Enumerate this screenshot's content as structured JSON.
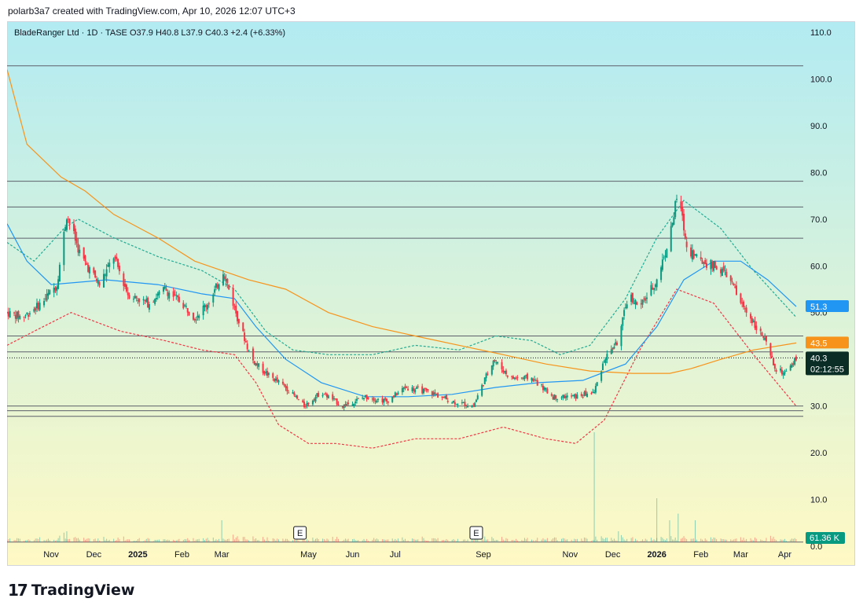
{
  "header": {
    "text": "polarb3a7 created with TradingView.com, Apr 10, 2026 12:07 UTC+3"
  },
  "legend": {
    "text": "BladeRanger Ltd · 1D · TASE  O37.9  H40.8  L37.9  C40.3  +2.4 (+6.33%)"
  },
  "footer": {
    "brand": "TradingView",
    "logo_icon": "tradingview-logo-icon"
  },
  "colors": {
    "up": "#089981",
    "down": "#f23645",
    "sma_orange": "#f7931a",
    "sma_blue": "#2196f3",
    "band_green": "#22ab94",
    "band_red": "#f23645",
    "bg_top": "#b2ebf2",
    "bg_bottom": "#fff9c4",
    "hline": "#5d606b"
  },
  "chart_data": {
    "type": "candlestick",
    "symbol": "BladeRanger Ltd",
    "interval": "1D",
    "exchange": "TASE",
    "ohlc_last": {
      "open": 37.9,
      "high": 40.8,
      "low": 37.9,
      "close": 40.3,
      "change": "+2.4 (+6.33%)"
    },
    "y_axis": {
      "ylim": [
        -2,
        112
      ],
      "ticks": [
        0.0,
        10.0,
        20.0,
        30.0,
        40.0,
        50.0,
        60.0,
        70.0,
        80.0,
        90.0,
        100.0,
        110.0
      ],
      "tick_labels": [
        "0.0",
        "10.0",
        "20.0",
        "30.0",
        "40.0",
        "50.0",
        "60.0",
        "70.0",
        "80.0",
        "90.0",
        "100.0",
        "110.0"
      ]
    },
    "x_axis": {
      "ticks": [
        {
          "label": "Nov",
          "date": "2024-11-01",
          "bold": false
        },
        {
          "label": "Dec",
          "date": "2024-12-01",
          "bold": false
        },
        {
          "label": "2025",
          "date": "2025-01-01",
          "bold": true
        },
        {
          "label": "Feb",
          "date": "2025-02-01",
          "bold": false
        },
        {
          "label": "Mar",
          "date": "2025-03-01",
          "bold": false
        },
        {
          "label": "May",
          "date": "2025-05-01",
          "bold": false
        },
        {
          "label": "Jun",
          "date": "2025-06-01",
          "bold": false
        },
        {
          "label": "Jul",
          "date": "2025-07-01",
          "bold": false
        },
        {
          "label": "Sep",
          "date": "2025-09-01",
          "bold": false
        },
        {
          "label": "Nov",
          "date": "2025-11-01",
          "bold": false
        },
        {
          "label": "Dec",
          "date": "2025-12-01",
          "bold": false
        },
        {
          "label": "2026",
          "date": "2026-01-01",
          "bold": true
        },
        {
          "label": "Feb",
          "date": "2026-02-01",
          "bold": false
        },
        {
          "label": "Mar",
          "date": "2026-03-01",
          "bold": false
        },
        {
          "label": "Apr",
          "date": "2026-04-01",
          "bold": false
        }
      ],
      "range": [
        "2024-10-01",
        "2026-04-14"
      ]
    },
    "horizontal_lines": [
      102.8,
      78.1,
      72.6,
      65.9,
      45.0,
      41.6,
      30.0,
      29.0,
      27.8,
      0.9
    ],
    "price_path": [
      [
        "2024-10-01",
        50
      ],
      [
        "2024-10-12",
        49
      ],
      [
        "2024-10-25",
        52
      ],
      [
        "2024-11-05",
        56
      ],
      [
        "2024-11-12",
        71
      ],
      [
        "2024-11-22",
        62
      ],
      [
        "2024-12-05",
        56
      ],
      [
        "2024-12-15",
        62
      ],
      [
        "2024-12-25",
        54
      ],
      [
        "2025-01-08",
        52
      ],
      [
        "2025-01-20",
        55
      ],
      [
        "2025-02-01",
        52
      ],
      [
        "2025-02-10",
        49
      ],
      [
        "2025-02-22",
        53
      ],
      [
        "2025-03-02",
        59
      ],
      [
        "2025-03-12",
        49
      ],
      [
        "2025-03-22",
        40
      ],
      [
        "2025-04-01",
        37
      ],
      [
        "2025-04-15",
        34
      ],
      [
        "2025-04-28",
        30
      ],
      [
        "2025-05-10",
        33
      ],
      [
        "2025-05-25",
        30
      ],
      [
        "2025-06-10",
        32
      ],
      [
        "2025-06-25",
        31
      ],
      [
        "2025-07-08",
        34
      ],
      [
        "2025-07-25",
        33
      ],
      [
        "2025-08-10",
        31
      ],
      [
        "2025-08-25",
        30
      ],
      [
        "2025-09-08",
        40
      ],
      [
        "2025-09-20",
        36
      ],
      [
        "2025-10-05",
        36
      ],
      [
        "2025-10-20",
        32
      ],
      [
        "2025-11-05",
        32
      ],
      [
        "2025-11-18",
        33
      ],
      [
        "2025-11-25",
        40
      ],
      [
        "2025-12-05",
        44
      ],
      [
        "2025-12-12",
        54
      ],
      [
        "2025-12-20",
        51
      ],
      [
        "2026-01-01",
        57
      ],
      [
        "2026-01-10",
        66
      ],
      [
        "2026-01-16",
        76
      ],
      [
        "2026-01-22",
        64
      ],
      [
        "2026-02-01",
        61
      ],
      [
        "2026-02-10",
        60
      ],
      [
        "2026-02-20",
        58
      ],
      [
        "2026-03-01",
        52
      ],
      [
        "2026-03-10",
        48
      ],
      [
        "2026-03-18",
        44
      ],
      [
        "2026-03-25",
        38
      ],
      [
        "2026-04-01",
        37
      ],
      [
        "2026-04-05",
        38
      ],
      [
        "2026-04-09",
        40.3
      ]
    ],
    "sma_orange": [
      [
        "2024-10-01",
        102
      ],
      [
        "2024-10-15",
        86
      ],
      [
        "2024-11-08",
        79
      ],
      [
        "2024-11-25",
        76
      ],
      [
        "2024-12-15",
        71
      ],
      [
        "2025-01-15",
        66
      ],
      [
        "2025-02-10",
        61
      ],
      [
        "2025-03-01",
        59
      ],
      [
        "2025-03-20",
        57
      ],
      [
        "2025-04-15",
        55
      ],
      [
        "2025-05-15",
        50
      ],
      [
        "2025-06-15",
        47
      ],
      [
        "2025-07-15",
        45
      ],
      [
        "2025-08-15",
        43
      ],
      [
        "2025-09-15",
        41
      ],
      [
        "2025-10-15",
        39
      ],
      [
        "2025-11-15",
        37.5
      ],
      [
        "2025-12-15",
        37
      ],
      [
        "2026-01-10",
        37
      ],
      [
        "2026-01-25",
        38
      ],
      [
        "2026-02-15",
        40
      ],
      [
        "2026-03-10",
        42
      ],
      [
        "2026-04-09",
        43.5
      ]
    ],
    "sma_blue": [
      [
        "2024-10-01",
        69
      ],
      [
        "2024-10-15",
        61
      ],
      [
        "2024-11-01",
        56
      ],
      [
        "2024-12-10",
        57
      ],
      [
        "2025-01-15",
        56
      ],
      [
        "2025-02-15",
        54
      ],
      [
        "2025-03-10",
        53
      ],
      [
        "2025-03-25",
        47
      ],
      [
        "2025-04-15",
        40
      ],
      [
        "2025-05-10",
        35
      ],
      [
        "2025-06-10",
        32
      ],
      [
        "2025-07-10",
        32
      ],
      [
        "2025-08-10",
        32.5
      ],
      [
        "2025-09-10",
        34
      ],
      [
        "2025-10-10",
        35
      ],
      [
        "2025-11-10",
        35.5
      ],
      [
        "2025-12-10",
        39
      ],
      [
        "2026-01-01",
        47
      ],
      [
        "2026-01-20",
        57
      ],
      [
        "2026-02-10",
        61
      ],
      [
        "2026-03-01",
        61
      ],
      [
        "2026-03-20",
        57
      ],
      [
        "2026-04-09",
        51.3
      ]
    ],
    "band_upper": [
      [
        "2024-10-01",
        65
      ],
      [
        "2024-10-20",
        61
      ],
      [
        "2024-11-10",
        68
      ],
      [
        "2024-11-20",
        70
      ],
      [
        "2024-12-15",
        66
      ],
      [
        "2025-01-15",
        62
      ],
      [
        "2025-02-15",
        59
      ],
      [
        "2025-03-10",
        55
      ],
      [
        "2025-04-01",
        46
      ],
      [
        "2025-04-20",
        42
      ],
      [
        "2025-05-15",
        41
      ],
      [
        "2025-06-15",
        41
      ],
      [
        "2025-07-15",
        43
      ],
      [
        "2025-08-15",
        42
      ],
      [
        "2025-09-10",
        45
      ],
      [
        "2025-10-05",
        44
      ],
      [
        "2025-10-25",
        41
      ],
      [
        "2025-11-15",
        43
      ],
      [
        "2025-12-10",
        53
      ],
      [
        "2026-01-01",
        66
      ],
      [
        "2026-01-20",
        74
      ],
      [
        "2026-02-15",
        68
      ],
      [
        "2026-03-10",
        59
      ],
      [
        "2026-04-09",
        49
      ]
    ],
    "band_lower": [
      [
        "2024-10-01",
        43
      ],
      [
        "2024-10-20",
        46
      ],
      [
        "2024-11-15",
        50
      ],
      [
        "2024-12-20",
        46
      ],
      [
        "2025-01-20",
        44
      ],
      [
        "2025-02-15",
        42
      ],
      [
        "2025-03-10",
        41
      ],
      [
        "2025-03-25",
        35
      ],
      [
        "2025-04-10",
        26
      ],
      [
        "2025-05-01",
        22
      ],
      [
        "2025-05-20",
        22
      ],
      [
        "2025-06-15",
        21
      ],
      [
        "2025-07-15",
        23
      ],
      [
        "2025-08-15",
        23
      ],
      [
        "2025-09-15",
        25.5
      ],
      [
        "2025-10-15",
        23
      ],
      [
        "2025-11-05",
        22
      ],
      [
        "2025-11-25",
        27
      ],
      [
        "2025-12-20",
        42
      ],
      [
        "2026-01-15",
        55
      ],
      [
        "2026-02-10",
        52
      ],
      [
        "2026-03-10",
        41
      ],
      [
        "2026-04-09",
        30
      ]
    ],
    "volume_spikes": [
      [
        "2024-11-12",
        0.5
      ],
      [
        "2025-03-01",
        1
      ],
      [
        "2025-11-18",
        5
      ],
      [
        "2025-12-05",
        0.5
      ],
      [
        "2026-01-01",
        2
      ],
      [
        "2026-01-10",
        1
      ],
      [
        "2026-01-16",
        1.3
      ],
      [
        "2026-01-28",
        1
      ]
    ],
    "earnings_markers": [
      {
        "label": "E",
        "date": "2025-04-25"
      },
      {
        "label": "E",
        "date": "2025-08-27"
      }
    ],
    "price_labels": [
      {
        "value": 51.3,
        "text": "51.3",
        "color": "#2196f3"
      },
      {
        "value": 43.5,
        "text": "43.5",
        "color": "#f7931a"
      },
      {
        "value": 40.3,
        "text": "40.3",
        "subtext": "02:12:55",
        "color": "#0a2e25"
      }
    ],
    "volume_label": {
      "text": "61.36 K",
      "color": "#089981"
    }
  }
}
